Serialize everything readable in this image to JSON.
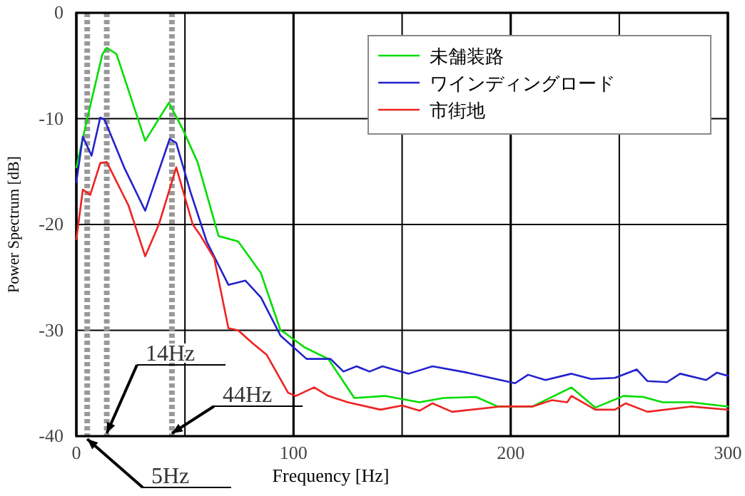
{
  "chart_data": {
    "type": "line",
    "xlabel": "Frequency [Hz]",
    "ylabel": "Power Spectrum [dB]",
    "xlim": [
      0,
      300
    ],
    "xticks": [
      0,
      {
        "value": 50,
        "label": null
      },
      100,
      {
        "value": 150,
        "label": null
      },
      200,
      {
        "value": 250,
        "label": null
      },
      300
    ],
    "ylim": [
      -40,
      0
    ],
    "yticks": [
      -40,
      -30,
      -20,
      -10,
      0
    ],
    "grid": true,
    "legend": "top right",
    "ref_lines": [
      {
        "axis": "x",
        "value": 5,
        "label": "5Hz",
        "color": "#999999",
        "line_style": "dotted"
      },
      {
        "axis": "x",
        "value": 14,
        "label": "14Hz",
        "color": "#999999",
        "line_style": "dotted"
      },
      {
        "axis": "x",
        "value": 44,
        "label": "44Hz",
        "color": "#999999",
        "line_style": "dotted"
      }
    ],
    "series": [
      {
        "name": "未舗装路",
        "color": "#00dd00",
        "x": [
          0,
          5,
          12,
          14,
          18.5,
          31.7,
          42.6,
          49,
          55.8,
          65.5,
          74.5,
          85,
          94,
          96.4,
          105,
          116,
          128,
          142,
          158,
          169,
          184,
          194,
          210,
          228,
          239,
          252,
          261,
          270,
          283,
          300
        ],
        "values": [
          -14.6,
          -10,
          -3.9,
          -3.3,
          -3.9,
          -12.1,
          -8.5,
          -11,
          -14.1,
          -21.1,
          -21.6,
          -24.6,
          -30,
          -30.3,
          -31.6,
          -32.7,
          -36.4,
          -36.2,
          -36.8,
          -36.4,
          -36.3,
          -37.2,
          -37.2,
          -35.4,
          -37.3,
          -36.2,
          -36.3,
          -36.8,
          -36.8,
          -37.2
        ]
      },
      {
        "name": "ワインディングロード",
        "color": "#2222cc",
        "x": [
          0,
          3,
          7,
          11,
          13,
          22,
          31.7,
          43,
          46,
          52.5,
          60,
          70,
          77.8,
          85,
          94,
          106,
          117,
          123,
          129,
          135,
          141,
          153,
          164,
          180,
          202,
          208,
          216,
          228,
          237,
          248,
          258,
          263,
          272,
          278,
          290,
          295,
          300
        ],
        "values": [
          -16,
          -11.7,
          -13.5,
          -9.9,
          -10.1,
          -14.6,
          -18.7,
          -11.9,
          -12.3,
          -16.9,
          -21.6,
          -25.7,
          -25.3,
          -26.9,
          -30.5,
          -32.7,
          -32.7,
          -33.9,
          -33.4,
          -33.9,
          -33.4,
          -34.1,
          -33.4,
          -34,
          -35,
          -34.2,
          -34.7,
          -34.1,
          -34.6,
          -34.5,
          -33.7,
          -34.8,
          -34.9,
          -34.1,
          -34.7,
          -34,
          -34.3
        ]
      },
      {
        "name": "市街地",
        "color": "#ee2222",
        "x": [
          0,
          3,
          6.4,
          11,
          14,
          24,
          31.7,
          38,
          46,
          53.6,
          57,
          63.5,
          70,
          74.5,
          81,
          87.6,
          97.5,
          101,
          109.5,
          116,
          125,
          140,
          150,
          158,
          164,
          173,
          195,
          210,
          219,
          226,
          228,
          239,
          248,
          253,
          263,
          283,
          300
        ],
        "values": [
          -21.4,
          -16.7,
          -17.2,
          -14.2,
          -14.1,
          -18.2,
          -23,
          -20,
          -14.6,
          -20,
          -21,
          -23.2,
          -29.8,
          -30,
          -31.2,
          -32.3,
          -35.9,
          -36.2,
          -35.4,
          -36.2,
          -36.8,
          -37.5,
          -37.1,
          -37.6,
          -36.9,
          -37.7,
          -37.2,
          -37.2,
          -36.6,
          -36.8,
          -36.2,
          -37.5,
          -37.5,
          -36.9,
          -37.7,
          -37.2,
          -37.5
        ]
      }
    ]
  }
}
